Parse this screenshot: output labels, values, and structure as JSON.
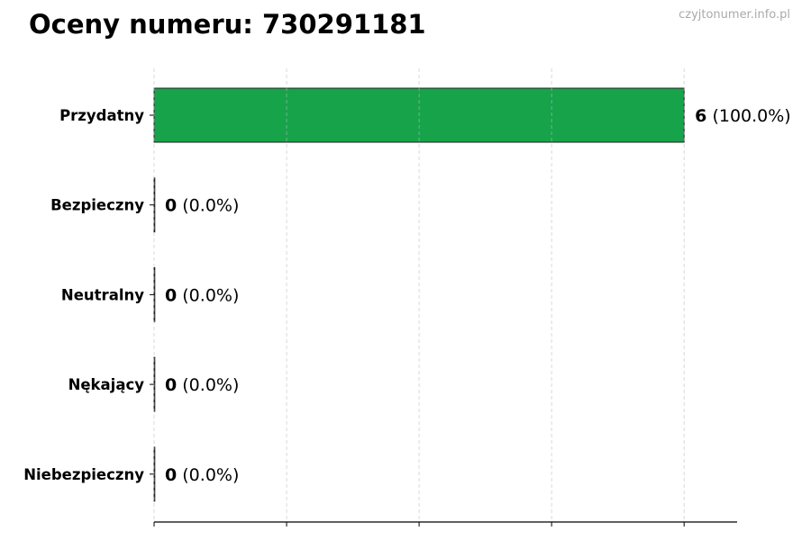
{
  "chart_data": {
    "type": "bar",
    "orientation": "horizontal",
    "title": "Oceny numeru: 730291181",
    "watermark": "czyjtonumer.info.pl",
    "categories": [
      "Przydatny",
      "Bezpieczny",
      "Neutralny",
      "Nękający",
      "Niebezpieczny"
    ],
    "values": [
      6,
      0,
      0,
      0,
      0
    ],
    "value_labels": [
      "6",
      "0",
      "0",
      "0",
      "0"
    ],
    "percent_labels": [
      "(100.0%)",
      "(0.0%)",
      "(0.0%)",
      "(0.0%)",
      "(0.0%)"
    ],
    "colors": [
      "#17a34a",
      "#17a34a",
      "#17a34a",
      "#17a34a",
      "#17a34a"
    ],
    "xlim": [
      0,
      6.6
    ],
    "xticks": [
      0,
      1.5,
      3,
      4.5,
      6
    ],
    "xtick_labels_shown": false,
    "grid": "x-dashed",
    "xlabel": "",
    "ylabel": ""
  }
}
